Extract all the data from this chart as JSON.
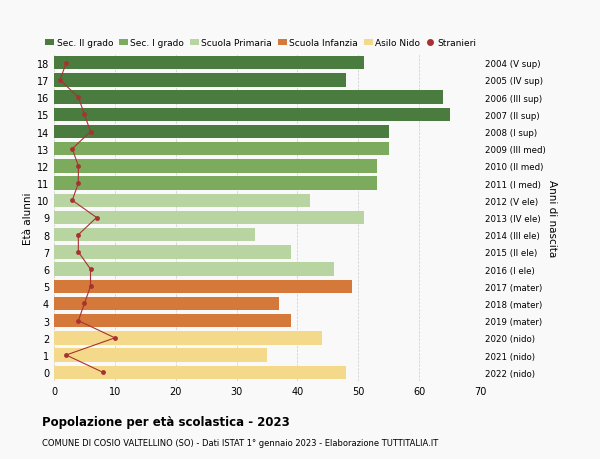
{
  "ages": [
    18,
    17,
    16,
    15,
    14,
    13,
    12,
    11,
    10,
    9,
    8,
    7,
    6,
    5,
    4,
    3,
    2,
    1,
    0
  ],
  "bar_values": [
    51,
    48,
    64,
    65,
    55,
    55,
    53,
    53,
    42,
    51,
    33,
    39,
    46,
    49,
    37,
    39,
    44,
    35,
    48
  ],
  "bar_colors": [
    "#4a7c3f",
    "#4a7c3f",
    "#4a7c3f",
    "#4a7c3f",
    "#4a7c3f",
    "#7dab5e",
    "#7dab5e",
    "#7dab5e",
    "#b8d4a0",
    "#b8d4a0",
    "#b8d4a0",
    "#b8d4a0",
    "#b8d4a0",
    "#d4793a",
    "#d4793a",
    "#d4793a",
    "#f5d98b",
    "#f5d98b",
    "#f5d98b"
  ],
  "stranieri_values": [
    2,
    1,
    4,
    5,
    6,
    3,
    4,
    4,
    3,
    7,
    4,
    4,
    6,
    6,
    5,
    4,
    10,
    2,
    8
  ],
  "right_labels": [
    "2004 (V sup)",
    "2005 (IV sup)",
    "2006 (III sup)",
    "2007 (II sup)",
    "2008 (I sup)",
    "2009 (III med)",
    "2010 (II med)",
    "2011 (I med)",
    "2012 (V ele)",
    "2013 (IV ele)",
    "2014 (III ele)",
    "2015 (II ele)",
    "2016 (I ele)",
    "2017 (mater)",
    "2018 (mater)",
    "2019 (mater)",
    "2020 (nido)",
    "2021 (nido)",
    "2022 (nido)"
  ],
  "ylabel_left": "Età alunni",
  "ylabel_right": "Anni di nascita",
  "xlim": [
    0,
    70
  ],
  "xticks": [
    0,
    10,
    20,
    30,
    40,
    50,
    60,
    70
  ],
  "legend_labels": [
    "Sec. II grado",
    "Sec. I grado",
    "Scuola Primaria",
    "Scuola Infanzia",
    "Asilo Nido",
    "Stranieri"
  ],
  "legend_colors": [
    "#4a7c3f",
    "#7dab5e",
    "#b8d4a0",
    "#d4793a",
    "#f5d98b",
    "#a83232"
  ],
  "title": "Popolazione per età scolastica - 2023",
  "subtitle": "COMUNE DI COSIO VALTELLINO (SO) - Dati ISTAT 1° gennaio 2023 - Elaborazione TUTTITALIA.IT",
  "bg_color": "#f9f9f9",
  "stranieri_color": "#a83232"
}
